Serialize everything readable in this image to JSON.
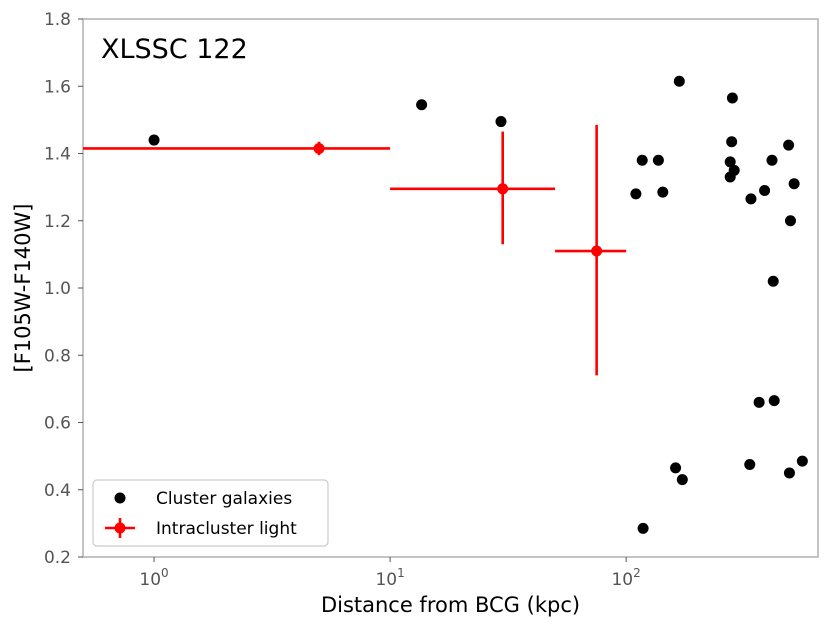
{
  "chart_data": {
    "type": "scatter",
    "title": "XLSSC 122",
    "xlabel": "Distance from BCG (kpc)",
    "ylabel": "[F105W-F140W]",
    "xscale": "log",
    "xlim": [
      0.5,
      650
    ],
    "ylim": [
      0.2,
      1.8
    ],
    "yticks": [
      "0.2",
      "0.4",
      "0.6",
      "0.8",
      "1.0",
      "1.2",
      "1.4",
      "1.6",
      "1.8"
    ],
    "xticks": [
      {
        "base": "10",
        "exp": "0",
        "value": 1
      },
      {
        "base": "10",
        "exp": "1",
        "value": 10
      },
      {
        "base": "10",
        "exp": "2",
        "value": 100
      }
    ],
    "grid": false,
    "legend_position": "lower-left",
    "series": [
      {
        "name": "Cluster galaxies",
        "color": "#000000",
        "marker": "circle",
        "points": [
          {
            "x": 1.0,
            "y": 1.44
          },
          {
            "x": 13.6,
            "y": 1.545
          },
          {
            "x": 29.5,
            "y": 1.495
          },
          {
            "x": 110,
            "y": 1.28
          },
          {
            "x": 117,
            "y": 1.38
          },
          {
            "x": 118,
            "y": 0.285
          },
          {
            "x": 137,
            "y": 1.38
          },
          {
            "x": 143,
            "y": 1.285
          },
          {
            "x": 162,
            "y": 0.465
          },
          {
            "x": 168,
            "y": 1.615
          },
          {
            "x": 173,
            "y": 0.43
          },
          {
            "x": 276,
            "y": 1.375
          },
          {
            "x": 276,
            "y": 1.33
          },
          {
            "x": 280,
            "y": 1.435
          },
          {
            "x": 282,
            "y": 1.565
          },
          {
            "x": 287,
            "y": 1.35
          },
          {
            "x": 334,
            "y": 0.475
          },
          {
            "x": 338,
            "y": 1.265
          },
          {
            "x": 366,
            "y": 0.66
          },
          {
            "x": 386,
            "y": 1.29
          },
          {
            "x": 415,
            "y": 1.38
          },
          {
            "x": 420,
            "y": 1.02
          },
          {
            "x": 424,
            "y": 0.665
          },
          {
            "x": 488,
            "y": 1.425
          },
          {
            "x": 492,
            "y": 0.45
          },
          {
            "x": 497,
            "y": 1.2
          },
          {
            "x": 515,
            "y": 1.31
          },
          {
            "x": 558,
            "y": 0.485
          }
        ]
      },
      {
        "name": "Intracluster light",
        "color": "#ff0000",
        "marker": "circle-errorbar",
        "points": [
          {
            "x": 5.0,
            "y": 1.415,
            "xmin": 0.5,
            "xmax": 10,
            "ymin": 1.395,
            "ymax": 1.435
          },
          {
            "x": 30.0,
            "y": 1.295,
            "xmin": 10,
            "xmax": 50,
            "ymin": 1.13,
            "ymax": 1.465
          },
          {
            "x": 75.0,
            "y": 1.11,
            "xmin": 50,
            "xmax": 100,
            "ymin": 0.74,
            "ymax": 1.485
          }
        ]
      }
    ]
  },
  "legend": {
    "items": [
      {
        "label": "Cluster galaxies"
      },
      {
        "label": "Intracluster light"
      }
    ]
  }
}
